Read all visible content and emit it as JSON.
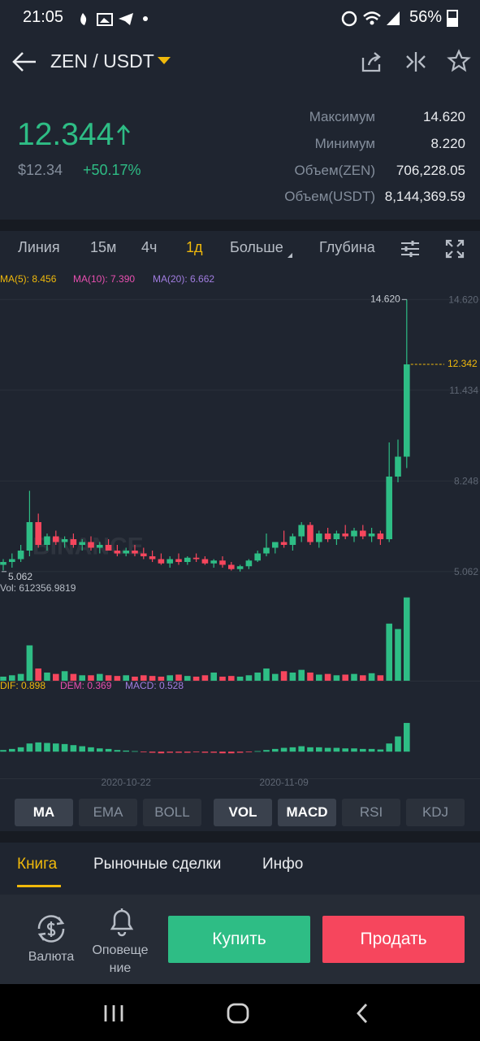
{
  "status_bar": {
    "time": "21:05",
    "battery": "56%"
  },
  "header": {
    "pair": "ZEN / USDT"
  },
  "ticker": {
    "price": "12.344",
    "price_usd": "$12.34",
    "change": "+50.17%",
    "stats": [
      {
        "label": "Максимум",
        "value": "14.620"
      },
      {
        "label": "Минимум",
        "value": "8.220"
      },
      {
        "label": "Объем(ZEN)",
        "value": "706,228.05"
      },
      {
        "label": "Объем(USDT)",
        "value": "8,144,369.59"
      }
    ]
  },
  "intervals": [
    {
      "label": "Линия"
    },
    {
      "label": "15м"
    },
    {
      "label": "4ч"
    },
    {
      "label": "1д",
      "active": true
    },
    {
      "label": "Больше"
    },
    {
      "label": "Глубина"
    }
  ],
  "chart_data": {
    "type": "candlestick",
    "watermark": "BINANCE",
    "up_color": "#2ebd85",
    "down_color": "#f6465d",
    "legend": [
      {
        "text": "MA(5): 8.456",
        "color": "#f0b90b"
      },
      {
        "text": "MA(10): 7.390",
        "color": "#e84fb0"
      },
      {
        "text": "MA(20): 6.662",
        "color": "#a17de0"
      }
    ],
    "categories": [
      null,
      null,
      null,
      null,
      null,
      null,
      null,
      null,
      null,
      null,
      null,
      null,
      null,
      null,
      "2020-10-22",
      null,
      null,
      null,
      null,
      null,
      null,
      null,
      null,
      null,
      null,
      null,
      null,
      null,
      null,
      null,
      null,
      null,
      "2020-11-09",
      null,
      null,
      null,
      null,
      null,
      null,
      null,
      null,
      null,
      null,
      null,
      null,
      null,
      null
    ],
    "open": [
      5.3,
      5.4,
      5.5,
      5.8,
      6.8,
      6.0,
      6.3,
      6.1,
      6.2,
      6.0,
      6.1,
      5.9,
      6.0,
      5.8,
      5.7,
      5.8,
      5.7,
      5.6,
      5.5,
      5.35,
      5.5,
      5.4,
      5.55,
      5.5,
      5.35,
      5.45,
      5.3,
      5.15,
      5.25,
      5.45,
      5.7,
      5.9,
      6.1,
      6.0,
      6.3,
      6.7,
      6.1,
      6.4,
      6.2,
      6.4,
      6.3,
      6.5,
      6.3,
      6.4,
      6.2,
      8.4,
      9.1
    ],
    "high": [
      5.5,
      5.7,
      6.0,
      7.9,
      7.1,
      6.4,
      6.5,
      6.3,
      6.4,
      6.2,
      6.3,
      6.1,
      6.2,
      6.0,
      5.9,
      6.0,
      5.9,
      5.8,
      5.7,
      5.6,
      5.7,
      5.6,
      5.7,
      5.6,
      5.5,
      5.6,
      5.4,
      5.3,
      5.5,
      5.8,
      6.4,
      6.1,
      6.5,
      6.4,
      6.8,
      6.8,
      6.5,
      6.6,
      6.5,
      6.7,
      6.6,
      6.7,
      6.6,
      6.5,
      9.6,
      9.7,
      14.62
    ],
    "low": [
      5.1,
      5.2,
      5.4,
      5.6,
      5.9,
      5.8,
      6.0,
      5.9,
      5.9,
      5.8,
      5.8,
      5.7,
      5.8,
      5.6,
      5.6,
      5.6,
      5.5,
      5.4,
      5.3,
      5.2,
      5.3,
      5.3,
      5.4,
      5.3,
      5.2,
      5.2,
      5.1,
      5.062,
      5.15,
      5.4,
      5.6,
      5.7,
      5.9,
      5.8,
      6.1,
      6.0,
      5.9,
      6.1,
      6.0,
      6.2,
      6.1,
      6.2,
      6.1,
      6.0,
      6.1,
      8.2,
      8.7
    ],
    "close": [
      5.4,
      5.5,
      5.8,
      6.8,
      6.0,
      6.3,
      6.1,
      6.2,
      6.0,
      6.1,
      5.9,
      6.0,
      5.8,
      5.7,
      5.8,
      5.7,
      5.6,
      5.5,
      5.35,
      5.5,
      5.4,
      5.55,
      5.5,
      5.35,
      5.45,
      5.3,
      5.15,
      5.25,
      5.45,
      5.7,
      5.9,
      6.1,
      6.0,
      6.3,
      6.7,
      6.1,
      6.4,
      6.2,
      6.4,
      6.3,
      6.5,
      6.3,
      6.4,
      6.2,
      8.4,
      9.1,
      12.342
    ],
    "ylim": [
      4.8,
      15.0
    ],
    "yticks": [
      {
        "value": 14.62,
        "label": "14.620"
      },
      {
        "value": 11.434,
        "label": "11.434"
      },
      {
        "value": 8.248,
        "label": "8.248"
      },
      {
        "value": 5.062,
        "label": "5.062"
      }
    ],
    "grid": true,
    "high_marker": {
      "value": 14.62,
      "label": "14.620"
    },
    "low_marker": {
      "value": 5.062,
      "label": "5.062"
    },
    "last_price": {
      "value": 12.342,
      "label": "12.342"
    },
    "volume_label": "Vol: 612356.9819",
    "volume": [
      30000,
      40000,
      50000,
      260000,
      90000,
      60000,
      50000,
      70000,
      50000,
      40000,
      40000,
      50000,
      40000,
      35000,
      40000,
      30000,
      40000,
      35000,
      30000,
      40000,
      45000,
      35000,
      30000,
      40000,
      60000,
      30000,
      35000,
      30000,
      40000,
      60000,
      90000,
      50000,
      70000,
      60000,
      80000,
      60000,
      45000,
      50000,
      40000,
      45000,
      50000,
      40000,
      55000,
      40000,
      420000,
      380000,
      612356.9819
    ],
    "volume_ylim": [
      0,
      640000
    ],
    "macd_legend": [
      {
        "text": "DIF: 0.898",
        "color": "#f0b90b"
      },
      {
        "text": "DEM: 0.369",
        "color": "#e84fb0"
      },
      {
        "text": "MACD: 0.528",
        "color": "#a17de0"
      }
    ],
    "macd": [
      0.03,
      0.05,
      0.08,
      0.15,
      0.17,
      0.16,
      0.15,
      0.14,
      0.12,
      0.1,
      0.08,
      0.06,
      0.05,
      0.03,
      0.02,
      0.01,
      -0.01,
      -0.02,
      -0.03,
      -0.02,
      -0.02,
      -0.02,
      -0.01,
      -0.02,
      -0.02,
      -0.03,
      -0.03,
      -0.02,
      -0.01,
      0.01,
      0.03,
      0.05,
      0.07,
      0.08,
      0.1,
      0.08,
      0.08,
      0.07,
      0.07,
      0.06,
      0.06,
      0.05,
      0.05,
      0.04,
      0.15,
      0.28,
      0.528
    ],
    "macd_ylim": [
      -0.49,
      1.08
    ]
  },
  "indicators": {
    "main": [
      {
        "label": "MA",
        "active": true
      },
      {
        "label": "EMA"
      },
      {
        "label": "BOLL"
      }
    ],
    "sub": [
      {
        "label": "VOL",
        "active": true
      },
      {
        "label": "MACD",
        "active": true
      },
      {
        "label": "RSI"
      },
      {
        "label": "KDJ"
      }
    ]
  },
  "book_tabs": [
    {
      "label": "Книга",
      "active": true
    },
    {
      "label": "Рыночные сделки"
    },
    {
      "label": "Инфо"
    }
  ],
  "actions": {
    "currency": "Валюта",
    "alerts": "Оповещение",
    "buy": "Купить",
    "sell": "Продать"
  }
}
